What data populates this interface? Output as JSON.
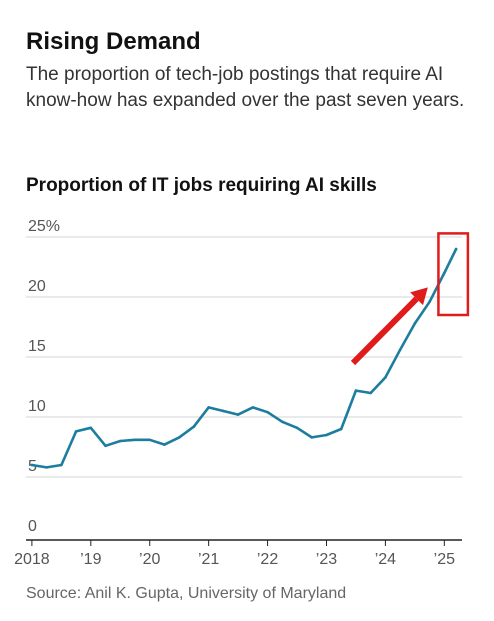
{
  "headline": "Rising Demand",
  "dek": "The proportion of tech-job postings that require AI know-how has expanded over the past seven years.",
  "source": "Source: Anil K. Gupta, University of Maryland",
  "colors": {
    "line": "#1d7d9e",
    "arrow": "#e01b1b",
    "highlight_box": "#e01b1b",
    "grid": "#d6d6d6"
  },
  "chart_data": {
    "type": "line",
    "title": "Proportion of IT jobs requiring AI skills",
    "xlabel": "",
    "ylabel": "",
    "y_ticks": [
      "25%",
      "20",
      "15",
      "10",
      "5",
      "0"
    ],
    "y_tick_values": [
      25,
      20,
      15,
      10,
      5,
      0
    ],
    "x_ticks": [
      "2018",
      "’19",
      "’20",
      "’21",
      "’22",
      "’23",
      "’24",
      "’25"
    ],
    "x_tick_values": [
      2018,
      2019,
      2020,
      2021,
      2022,
      2023,
      2024,
      2025
    ],
    "ylim": [
      0,
      25
    ],
    "xlim": [
      2017.9,
      2025.3
    ],
    "grid": true,
    "series": [
      {
        "x": [
          2018.0,
          2018.25,
          2018.5,
          2018.75,
          2019.0,
          2019.25,
          2019.5,
          2019.75,
          2020.0,
          2020.25,
          2020.5,
          2020.75,
          2021.0,
          2021.25,
          2021.5,
          2021.75,
          2022.0,
          2022.25,
          2022.5,
          2022.75,
          2023.0,
          2023.25,
          2023.5,
          2023.75,
          2024.0,
          2024.25,
          2024.5,
          2024.75,
          2025.0,
          2025.2
        ],
        "values": [
          6.0,
          5.8,
          6.0,
          8.8,
          9.1,
          7.6,
          8.0,
          8.1,
          8.1,
          7.7,
          8.3,
          9.2,
          10.8,
          10.5,
          10.2,
          10.8,
          10.4,
          9.6,
          9.1,
          8.3,
          8.5,
          9.0,
          12.2,
          12.0,
          13.3,
          15.6,
          17.8,
          19.6,
          22.0,
          24.0
        ]
      }
    ],
    "annotations": [
      {
        "kind": "arrow",
        "color": "#e01b1b",
        "from": [
          2023.45,
          14.5
        ],
        "to": [
          2024.72,
          20.8
        ]
      },
      {
        "kind": "box",
        "color": "#e01b1b",
        "x_range": [
          2024.9,
          2025.4
        ],
        "y_range": [
          18.5,
          25.3
        ]
      }
    ]
  }
}
